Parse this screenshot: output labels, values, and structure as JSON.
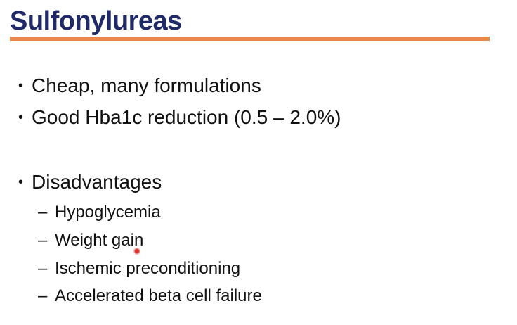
{
  "slide": {
    "title": "Sulfonylureas",
    "bullets": [
      {
        "marker": "•",
        "text": "Cheap, many formulations"
      },
      {
        "marker": "•",
        "text": "Good Hba1c reduction (0.5 – 2.0%)"
      },
      {
        "marker": "•",
        "text": "Disadvantages"
      }
    ],
    "sub_items": [
      {
        "marker": "–",
        "text": "Hypoglycemia"
      },
      {
        "marker": "–",
        "text": "Weight gain"
      },
      {
        "marker": "–",
        "text": "Ischemic preconditioning"
      },
      {
        "marker": "–",
        "text": "Accelerated beta cell failure"
      }
    ]
  },
  "colors": {
    "title": "#1f2a66",
    "rule": "#e8884a",
    "body_text": "#111111",
    "pointer": "#d9302c"
  }
}
